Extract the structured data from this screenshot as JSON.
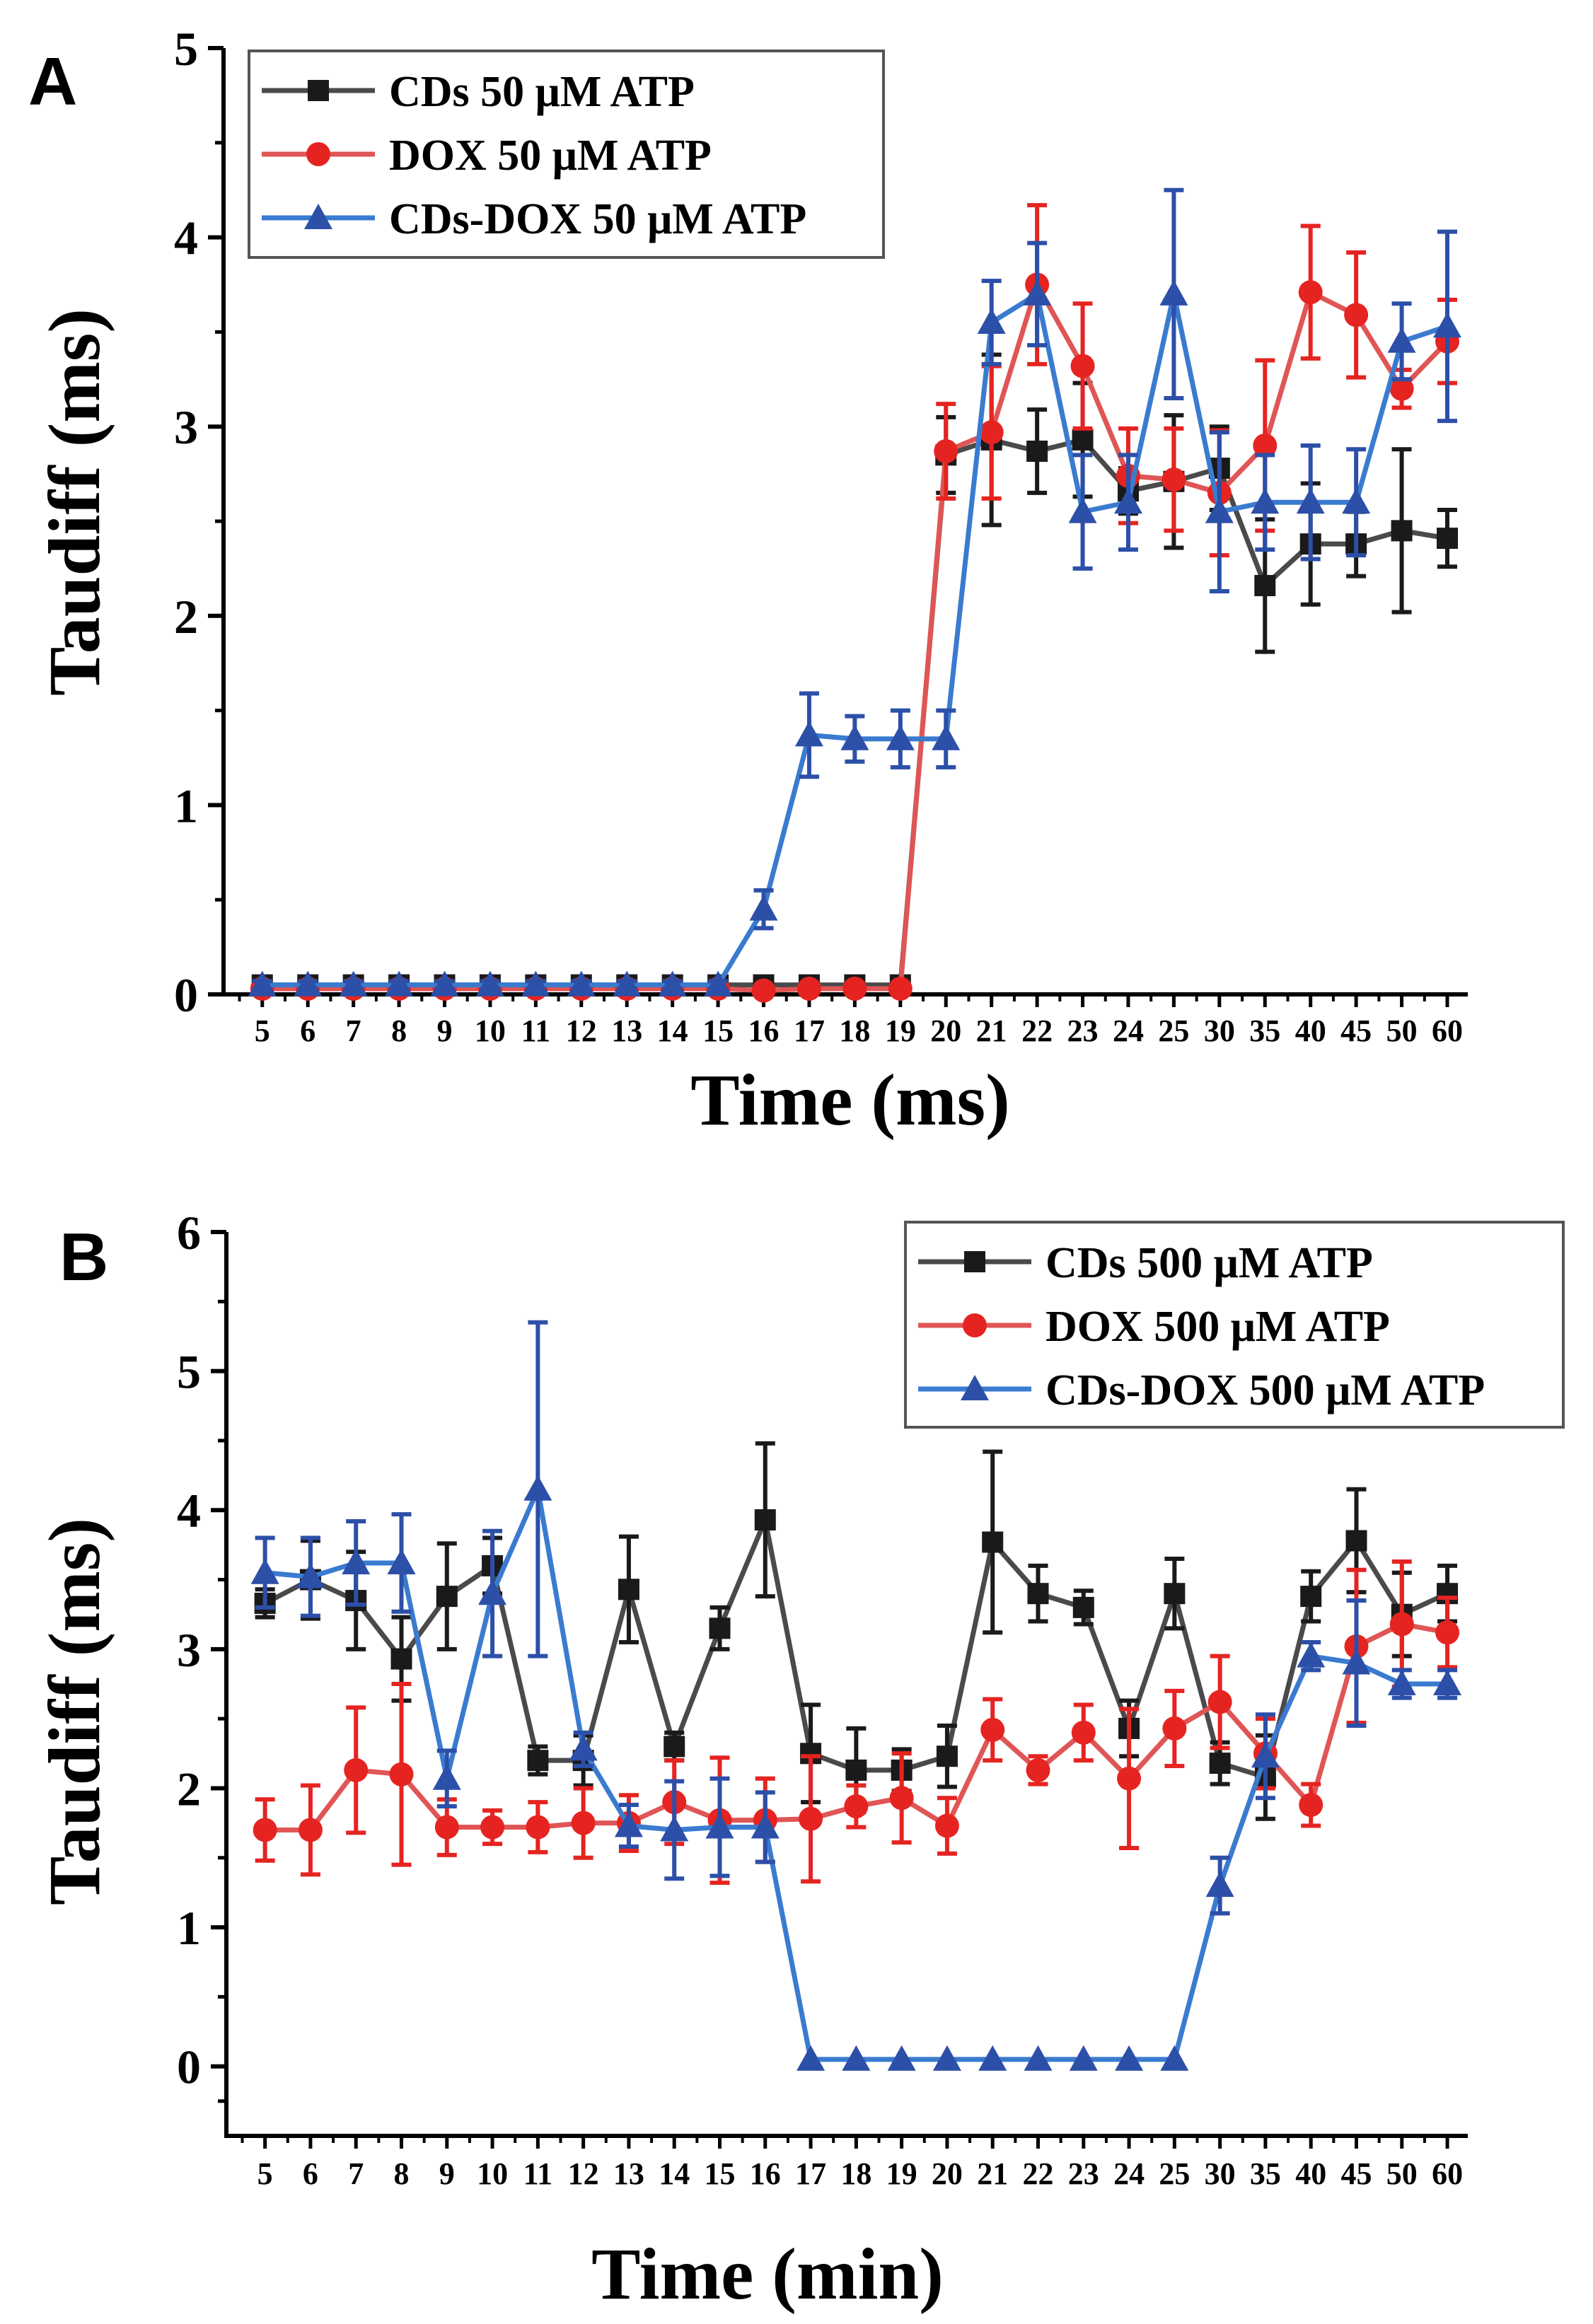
{
  "colors": {
    "cds": "#1a1a1a",
    "cds_line": "#4a4a4a",
    "dox": "#e52421",
    "dox_line": "#e05555",
    "cdsdox": "#2c4fa8",
    "cdsdox_line": "#3a7bd0",
    "axis": "#000000"
  },
  "chart_data": [
    {
      "type": "line",
      "panel_label": "A",
      "title": "",
      "xlabel": "Time (ms)",
      "ylabel": "Taudiff (ms)",
      "ylim": [
        0,
        5
      ],
      "yticks": [
        "0",
        "1",
        "2",
        "3",
        "4",
        "5"
      ],
      "categories": [
        "5",
        "6",
        "7",
        "8",
        "9",
        "10",
        "11",
        "12",
        "13",
        "14",
        "15",
        "16",
        "17",
        "18",
        "19",
        "20",
        "21",
        "22",
        "23",
        "24",
        "25",
        "30",
        "35",
        "40",
        "45",
        "50",
        "60"
      ],
      "legend_position": "top-left",
      "series": [
        {
          "name": "CDs 50 μM ATP",
          "marker": "square",
          "values": [
            0.05,
            0.05,
            0.05,
            0.05,
            0.05,
            0.05,
            0.05,
            0.05,
            0.05,
            0.05,
            0.05,
            0.05,
            0.05,
            0.05,
            0.05,
            2.85,
            2.93,
            2.87,
            2.93,
            2.66,
            2.71,
            2.78,
            2.16,
            2.38,
            2.38,
            2.45,
            2.41
          ],
          "errors": [
            0.02,
            0.02,
            0.02,
            0.02,
            0.02,
            0.02,
            0.02,
            0.02,
            0.02,
            0.02,
            0.02,
            0.02,
            0.02,
            0.02,
            0.02,
            0.2,
            0.45,
            0.22,
            0.3,
            0.12,
            0.35,
            0.22,
            0.35,
            0.32,
            0.17,
            0.43,
            0.15
          ]
        },
        {
          "name": "DOX 50 μM ATP",
          "marker": "circle",
          "values": [
            0.03,
            0.03,
            0.03,
            0.03,
            0.03,
            0.03,
            0.03,
            0.03,
            0.03,
            0.03,
            0.03,
            0.02,
            0.03,
            0.03,
            0.03,
            2.87,
            2.97,
            3.75,
            3.32,
            2.74,
            2.72,
            2.65,
            2.9,
            3.71,
            3.59,
            3.2,
            3.45
          ],
          "errors": [
            0.02,
            0.02,
            0.02,
            0.02,
            0.02,
            0.02,
            0.02,
            0.02,
            0.02,
            0.02,
            0.02,
            0.02,
            0.02,
            0.02,
            0.02,
            0.25,
            0.35,
            0.42,
            0.33,
            0.25,
            0.27,
            0.33,
            0.45,
            0.35,
            0.33,
            0.1,
            0.22
          ]
        },
        {
          "name": "CDs-DOX 50 μM ATP",
          "marker": "triangle",
          "values": [
            0.05,
            0.05,
            0.05,
            0.05,
            0.05,
            0.05,
            0.05,
            0.05,
            0.05,
            0.05,
            0.05,
            0.45,
            1.37,
            1.35,
            1.35,
            1.35,
            3.55,
            3.7,
            2.55,
            2.6,
            3.7,
            2.55,
            2.6,
            2.6,
            2.6,
            3.45,
            3.53
          ],
          "errors": [
            0.02,
            0.02,
            0.02,
            0.02,
            0.02,
            0.02,
            0.02,
            0.02,
            0.02,
            0.02,
            0.02,
            0.1,
            0.22,
            0.12,
            0.15,
            0.15,
            0.22,
            0.27,
            0.3,
            0.25,
            0.55,
            0.42,
            0.25,
            0.3,
            0.28,
            0.2,
            0.5
          ]
        }
      ]
    },
    {
      "type": "line",
      "panel_label": "B",
      "title": "",
      "xlabel": "Time (min)",
      "ylabel": "Taudiff (ms)",
      "ylim": [
        -0.5,
        6
      ],
      "yticks": [
        "0",
        "1",
        "2",
        "3",
        "4",
        "5",
        "6"
      ],
      "categories": [
        "5",
        "6",
        "7",
        "8",
        "9",
        "10",
        "11",
        "12",
        "13",
        "14",
        "15",
        "16",
        "17",
        "18",
        "19",
        "20",
        "21",
        "22",
        "23",
        "24",
        "25",
        "30",
        "35",
        "40",
        "45",
        "50",
        "60"
      ],
      "legend_position": "top-right",
      "series": [
        {
          "name": "CDs 500 μM ATP",
          "marker": "square",
          "values": [
            3.33,
            3.5,
            3.35,
            2.93,
            3.38,
            3.6,
            2.2,
            2.2,
            3.43,
            2.3,
            3.15,
            3.93,
            2.25,
            2.13,
            2.13,
            2.23,
            3.77,
            3.4,
            3.3,
            2.43,
            3.4,
            2.18,
            2.08,
            3.38,
            3.78,
            3.25,
            3.4
          ],
          "errors": [
            0.1,
            0.28,
            0.35,
            0.3,
            0.38,
            0.2,
            0.1,
            0.18,
            0.38,
            0.1,
            0.15,
            0.55,
            0.35,
            0.3,
            0.15,
            0.22,
            0.65,
            0.2,
            0.12,
            0.2,
            0.25,
            0.15,
            0.3,
            0.18,
            0.37,
            0.3,
            0.2
          ]
        },
        {
          "name": "DOX 500 μM ATP",
          "marker": "circle",
          "values": [
            1.7,
            1.7,
            2.13,
            2.1,
            1.72,
            1.72,
            1.72,
            1.75,
            1.75,
            1.9,
            1.77,
            1.77,
            1.78,
            1.87,
            1.93,
            1.73,
            2.42,
            2.13,
            2.4,
            2.07,
            2.43,
            2.62,
            2.25,
            1.88,
            3.02,
            3.18,
            3.12
          ],
          "errors": [
            0.22,
            0.32,
            0.45,
            0.65,
            0.2,
            0.12,
            0.18,
            0.25,
            0.2,
            0.3,
            0.45,
            0.3,
            0.45,
            0.15,
            0.32,
            0.2,
            0.22,
            0.1,
            0.2,
            0.5,
            0.27,
            0.33,
            0.25,
            0.15,
            0.55,
            0.45,
            0.25
          ]
        },
        {
          "name": "CDs-DOX 500 μM ATP",
          "marker": "triangle",
          "values": [
            3.55,
            3.52,
            3.62,
            3.62,
            2.07,
            3.4,
            4.15,
            2.28,
            1.73,
            1.7,
            1.72,
            1.72,
            0.05,
            0.05,
            0.05,
            0.05,
            0.05,
            0.05,
            0.05,
            0.05,
            0.05,
            1.3,
            2.23,
            2.95,
            2.9,
            2.75,
            2.75
          ],
          "errors": [
            0.25,
            0.28,
            0.3,
            0.35,
            0.2,
            0.45,
            1.2,
            0.12,
            0.15,
            0.35,
            0.35,
            0.25,
            0,
            0,
            0,
            0,
            0,
            0,
            0,
            0,
            0,
            0.2,
            0.3,
            0.1,
            0.45,
            0.1,
            0.1
          ]
        }
      ]
    }
  ]
}
